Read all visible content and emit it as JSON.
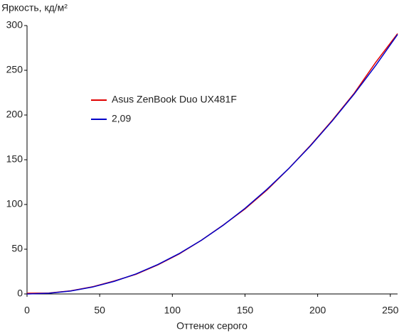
{
  "chart_data": {
    "type": "line",
    "ylabel": "Яркость, кд/м²",
    "xlabel": "Оттенок серого",
    "x": [
      0,
      15,
      30,
      45,
      60,
      75,
      90,
      105,
      120,
      135,
      150,
      165,
      180,
      195,
      210,
      225,
      240,
      255
    ],
    "series": [
      {
        "name": "Asus ZenBook Duo UX481F",
        "color": "#e00000",
        "values": [
          0.8,
          1,
          3.5,
          8,
          14.5,
          22,
          32.5,
          45,
          60,
          77,
          95,
          116,
          140,
          166,
          194,
          224,
          259,
          291
        ]
      },
      {
        "name": "2,09",
        "color": "#0000c8",
        "values": [
          0,
          0.8,
          3.3,
          7.7,
          14.1,
          22.4,
          32.9,
          45.4,
          60,
          76.8,
          95.7,
          116.8,
          140,
          165.5,
          193.3,
          223.2,
          255.5,
          290
        ]
      }
    ],
    "xlim": [
      0,
      255
    ],
    "xticks": [
      0,
      50,
      100,
      150,
      200,
      250
    ],
    "ylim": [
      0,
      300
    ],
    "yticks": [
      0,
      50,
      100,
      150,
      200,
      250,
      300
    ]
  }
}
